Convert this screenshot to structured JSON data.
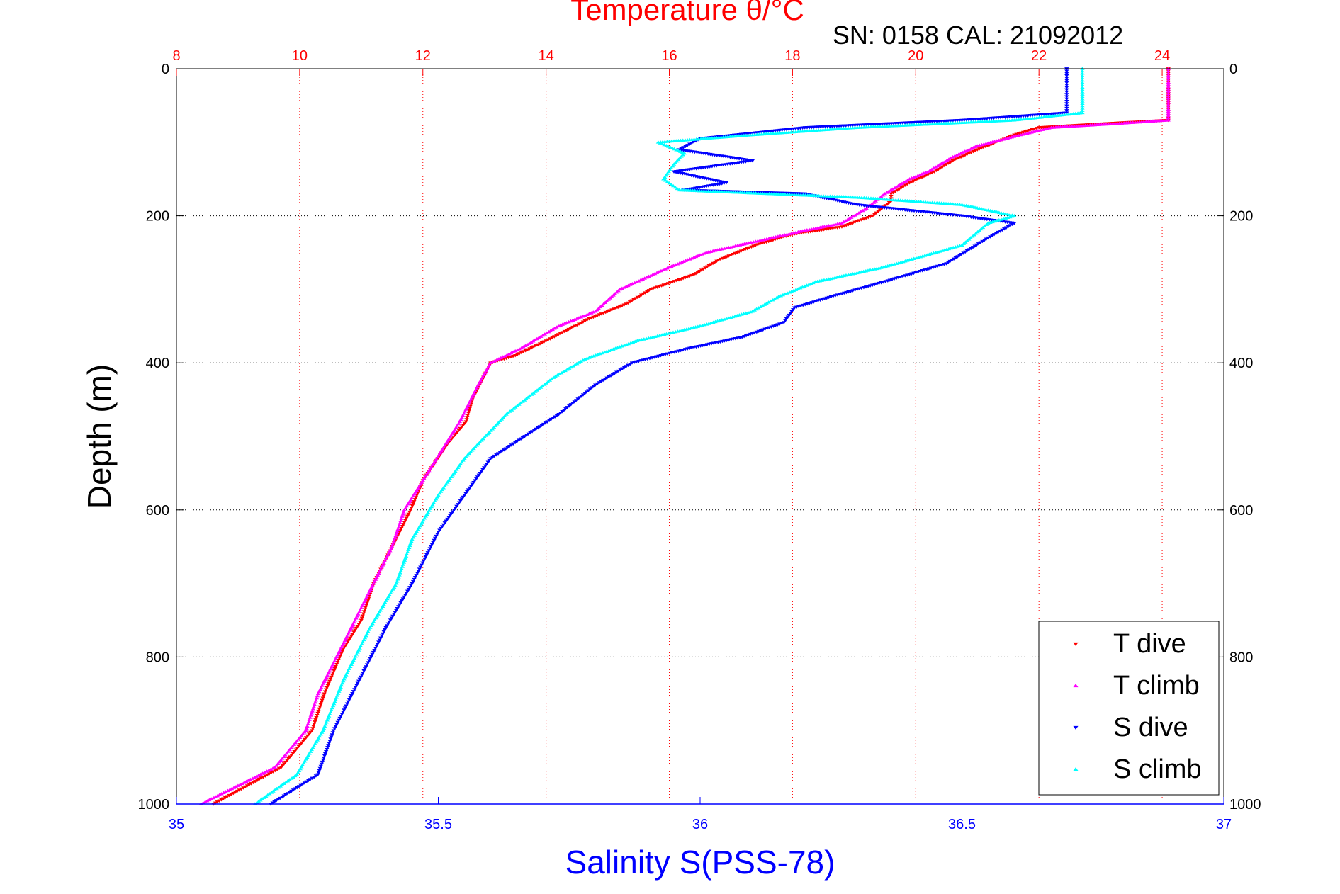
{
  "chart_data": {
    "type": "scatter",
    "title_top": "Temperature θ/°C",
    "annotation": "SN: 0158  CAL: 21092012",
    "xlabel_bottom": "Salinity S(PSS-78)",
    "ylabel": "Depth (m)",
    "x_bottom": {
      "lim": [
        35,
        37
      ],
      "ticks": [
        35,
        35.5,
        36,
        36.5,
        37
      ],
      "tick_labels": [
        "35",
        "35.5",
        "36",
        "36.5",
        "37"
      ]
    },
    "x_top": {
      "lim": [
        8,
        25
      ],
      "ticks": [
        8,
        10,
        12,
        14,
        16,
        18,
        20,
        22,
        24
      ],
      "tick_labels": [
        "8",
        "10",
        "12",
        "14",
        "16",
        "18",
        "20",
        "22",
        "24"
      ]
    },
    "y": {
      "lim": [
        0,
        1000
      ],
      "reversed": true,
      "ticks": [
        0,
        200,
        400,
        600,
        800,
        1000
      ],
      "tick_labels": [
        "0",
        "200",
        "400",
        "600",
        "800",
        "1000"
      ]
    },
    "grid": true,
    "legend": {
      "placement": "bottom-right"
    },
    "colors": {
      "t_axis": "#ff0000",
      "s_axis": "#0000ff",
      "grid": "#000000"
    },
    "series": [
      {
        "name": "T dive",
        "axis": "top",
        "marker": "triangle-down",
        "color": "#ff0000",
        "points": [
          [
            24.1,
            0
          ],
          [
            24.1,
            40
          ],
          [
            24.1,
            70
          ],
          [
            23.0,
            75
          ],
          [
            22.0,
            80
          ],
          [
            21.6,
            90
          ],
          [
            21.0,
            110
          ],
          [
            20.6,
            125
          ],
          [
            20.3,
            140
          ],
          [
            19.9,
            155
          ],
          [
            19.6,
            170
          ],
          [
            19.6,
            180
          ],
          [
            19.3,
            200
          ],
          [
            18.8,
            215
          ],
          [
            18.0,
            225
          ],
          [
            17.4,
            240
          ],
          [
            16.8,
            260
          ],
          [
            16.4,
            280
          ],
          [
            15.7,
            300
          ],
          [
            15.3,
            320
          ],
          [
            14.7,
            340
          ],
          [
            14.0,
            370
          ],
          [
            13.5,
            390
          ],
          [
            13.1,
            400
          ],
          [
            12.8,
            450
          ],
          [
            12.7,
            480
          ],
          [
            12.4,
            510
          ],
          [
            12.0,
            560
          ],
          [
            11.8,
            600
          ],
          [
            11.5,
            650
          ],
          [
            11.2,
            700
          ],
          [
            11.0,
            750
          ],
          [
            10.7,
            790
          ],
          [
            10.4,
            850
          ],
          [
            10.2,
            900
          ],
          [
            9.7,
            950
          ],
          [
            8.6,
            1000
          ]
        ]
      },
      {
        "name": "T climb",
        "axis": "top",
        "marker": "triangle-up",
        "color": "#ff00ff",
        "points": [
          [
            24.1,
            0
          ],
          [
            24.1,
            40
          ],
          [
            24.1,
            70
          ],
          [
            23.2,
            75
          ],
          [
            22.2,
            80
          ],
          [
            21.7,
            90
          ],
          [
            21.0,
            105
          ],
          [
            20.6,
            120
          ],
          [
            20.2,
            140
          ],
          [
            19.9,
            150
          ],
          [
            19.5,
            170
          ],
          [
            19.2,
            190
          ],
          [
            18.8,
            210
          ],
          [
            18.2,
            220
          ],
          [
            17.4,
            235
          ],
          [
            16.6,
            250
          ],
          [
            16.0,
            270
          ],
          [
            15.2,
            300
          ],
          [
            14.8,
            330
          ],
          [
            14.2,
            350
          ],
          [
            13.6,
            380
          ],
          [
            13.1,
            400
          ],
          [
            12.9,
            430
          ],
          [
            12.6,
            480
          ],
          [
            12.3,
            520
          ],
          [
            12.0,
            560
          ],
          [
            11.7,
            600
          ],
          [
            11.5,
            650
          ],
          [
            11.2,
            700
          ],
          [
            10.9,
            750
          ],
          [
            10.6,
            800
          ],
          [
            10.3,
            850
          ],
          [
            10.1,
            900
          ],
          [
            9.6,
            950
          ],
          [
            8.4,
            1000
          ]
        ]
      },
      {
        "name": "S dive",
        "axis": "bottom",
        "marker": "triangle-down",
        "color": "#0000ff",
        "points": [
          [
            36.7,
            0
          ],
          [
            36.7,
            60
          ],
          [
            36.5,
            70
          ],
          [
            36.2,
            80
          ],
          [
            36.0,
            95
          ],
          [
            35.96,
            110
          ],
          [
            36.1,
            125
          ],
          [
            35.95,
            140
          ],
          [
            36.05,
            155
          ],
          [
            35.97,
            165
          ],
          [
            36.2,
            170
          ],
          [
            36.3,
            185
          ],
          [
            36.5,
            200
          ],
          [
            36.6,
            210
          ],
          [
            36.55,
            230
          ],
          [
            36.47,
            265
          ],
          [
            36.35,
            290
          ],
          [
            36.25,
            310
          ],
          [
            36.18,
            325
          ],
          [
            36.16,
            345
          ],
          [
            36.08,
            365
          ],
          [
            35.98,
            380
          ],
          [
            35.87,
            400
          ],
          [
            35.8,
            430
          ],
          [
            35.73,
            470
          ],
          [
            35.6,
            530
          ],
          [
            35.55,
            580
          ],
          [
            35.5,
            630
          ],
          [
            35.45,
            700
          ],
          [
            35.4,
            760
          ],
          [
            35.35,
            830
          ],
          [
            35.3,
            900
          ],
          [
            35.27,
            960
          ],
          [
            35.18,
            1000
          ]
        ]
      },
      {
        "name": "S climb",
        "axis": "bottom",
        "marker": "triangle-up",
        "color": "#00ffff",
        "points": [
          [
            36.73,
            0
          ],
          [
            36.73,
            60
          ],
          [
            36.6,
            70
          ],
          [
            36.3,
            80
          ],
          [
            36.1,
            90
          ],
          [
            35.92,
            100
          ],
          [
            35.97,
            115
          ],
          [
            35.95,
            130
          ],
          [
            35.93,
            150
          ],
          [
            35.96,
            165
          ],
          [
            36.3,
            175
          ],
          [
            36.5,
            185
          ],
          [
            36.6,
            200
          ],
          [
            36.55,
            210
          ],
          [
            36.5,
            240
          ],
          [
            36.35,
            270
          ],
          [
            36.22,
            290
          ],
          [
            36.15,
            310
          ],
          [
            36.1,
            330
          ],
          [
            36.0,
            350
          ],
          [
            35.88,
            370
          ],
          [
            35.78,
            395
          ],
          [
            35.72,
            420
          ],
          [
            35.63,
            470
          ],
          [
            35.55,
            530
          ],
          [
            35.5,
            580
          ],
          [
            35.45,
            640
          ],
          [
            35.42,
            700
          ],
          [
            35.37,
            760
          ],
          [
            35.32,
            830
          ],
          [
            35.28,
            900
          ],
          [
            35.23,
            960
          ],
          [
            35.15,
            1000
          ]
        ]
      }
    ]
  }
}
